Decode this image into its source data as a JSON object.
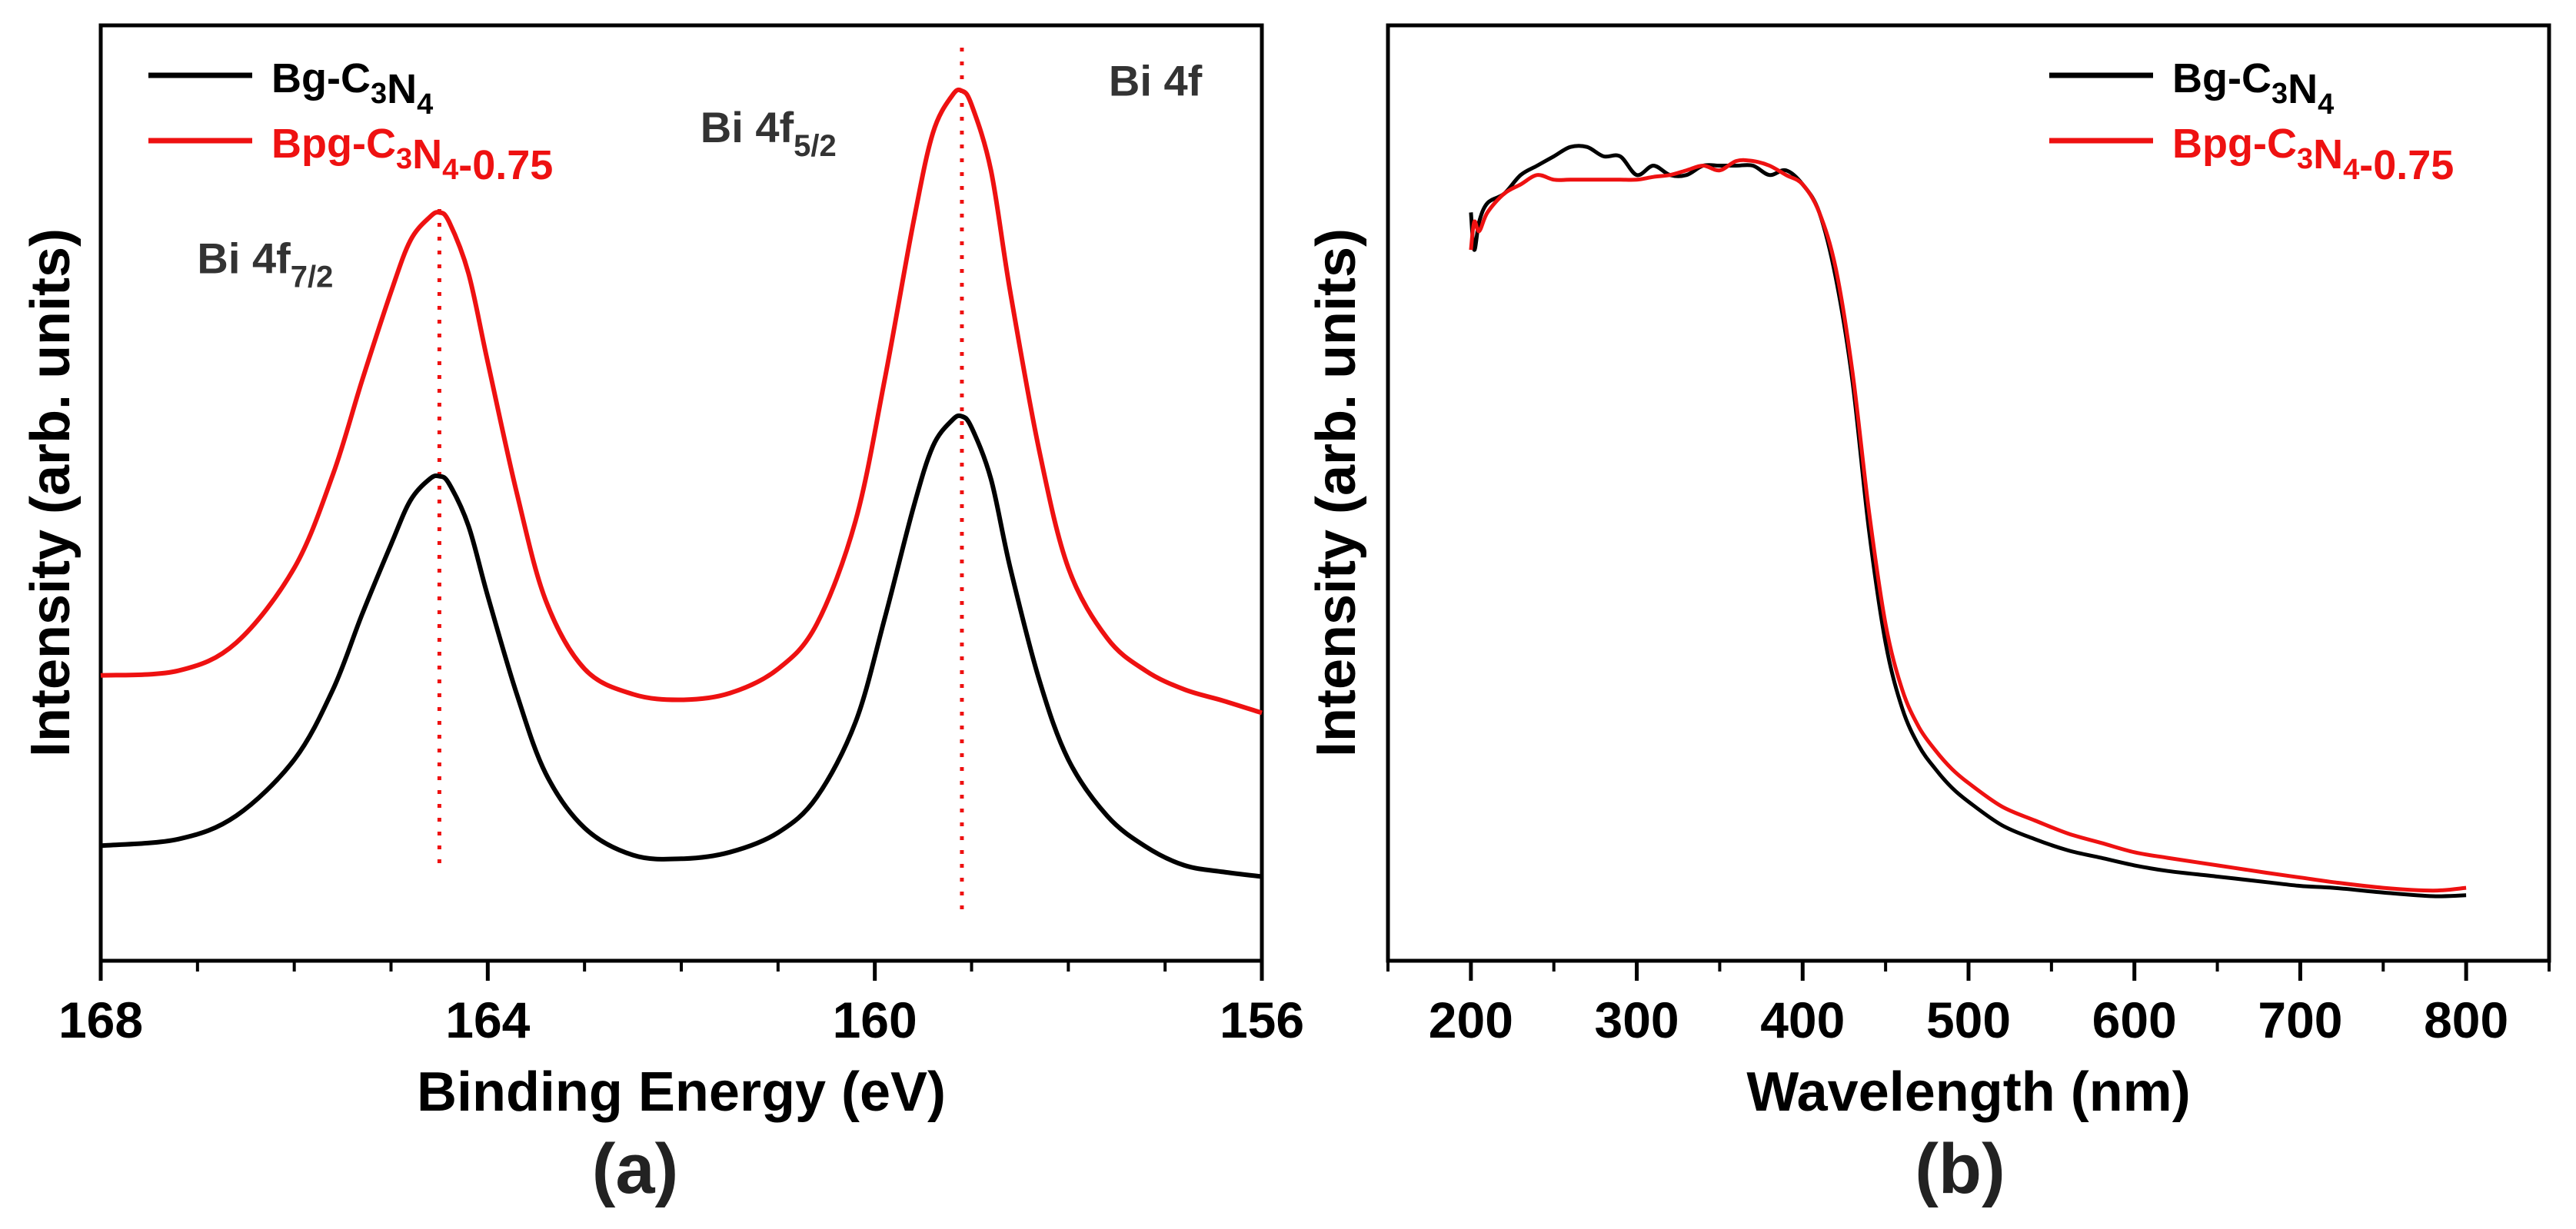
{
  "colors": {
    "black_series": "#000000",
    "red_series": "#ee1111",
    "peak_marker": "#ee1111",
    "axis": "#000000",
    "label_gray": "#333333"
  },
  "chart_data": [
    {
      "type": "line",
      "panel_label": "(a)",
      "xlabel": "Binding Energy (eV)",
      "ylabel": "Intensity (arb. units)",
      "xlim": [
        168,
        156
      ],
      "x_reversed": true,
      "x_major_ticks": [
        168,
        164,
        160,
        156
      ],
      "x_tick_labels": [
        "168",
        "164",
        "160",
        "156"
      ],
      "x_minor_ticks": [
        167,
        166,
        165,
        163,
        162,
        161,
        159,
        158,
        157
      ],
      "ylim": [
        0,
        100
      ],
      "y_ticks_shown": false,
      "grid": false,
      "legend_position": "top-left",
      "series": [
        {
          "name": "Bg-C₃N₄",
          "name_parts": {
            "base": "Bg-C",
            "sub1": "3",
            "mid": "N",
            "sub2": "4",
            "tail": ""
          },
          "color": "#000000",
          "x": [
            168,
            167.2,
            166.6,
            166.0,
            165.6,
            165.3,
            165.0,
            164.8,
            164.6,
            164.5,
            164.4,
            164.2,
            164.0,
            163.7,
            163.4,
            163.0,
            162.5,
            162.0,
            161.5,
            161.0,
            160.6,
            160.2,
            159.9,
            159.6,
            159.4,
            159.2,
            159.1,
            159.0,
            158.8,
            158.6,
            158.3,
            158.0,
            157.6,
            157.2,
            156.8,
            156.4,
            156.0
          ],
          "values": [
            12.3,
            13.0,
            15.5,
            21.5,
            29.0,
            37.0,
            44.5,
            49.2,
            51.5,
            51.8,
            51.0,
            46.5,
            39.0,
            28.5,
            20.0,
            14.2,
            11.3,
            10.9,
            11.6,
            13.7,
            17.5,
            25.5,
            36.5,
            48.5,
            55.0,
            57.8,
            58.2,
            57.0,
            51.5,
            42.0,
            30.0,
            21.5,
            15.5,
            12.2,
            10.2,
            9.5,
            9.0
          ]
        },
        {
          "name": "Bpg-C₃N₄-0.75",
          "name_parts": {
            "base": "Bpg-C",
            "sub1": "3",
            "mid": "N",
            "sub2": "4",
            "tail": "-0.75"
          },
          "color": "#ee1111",
          "x": [
            168,
            167.2,
            166.6,
            166.0,
            165.6,
            165.3,
            165.0,
            164.8,
            164.6,
            164.5,
            164.4,
            164.2,
            164.0,
            163.7,
            163.4,
            163.0,
            162.5,
            162.0,
            161.5,
            161.0,
            160.6,
            160.2,
            159.9,
            159.6,
            159.4,
            159.2,
            159.1,
            159.0,
            158.8,
            158.6,
            158.3,
            158.0,
            157.6,
            157.2,
            156.8,
            156.4,
            156.0
          ],
          "values": [
            30.5,
            31.0,
            34.0,
            42.0,
            52.0,
            62.0,
            71.5,
            77.0,
            79.5,
            80.0,
            79.0,
            73.5,
            64.0,
            50.0,
            38.5,
            31.2,
            28.5,
            27.9,
            28.6,
            31.2,
            36.0,
            47.0,
            62.0,
            79.0,
            88.5,
            92.5,
            93.0,
            91.5,
            84.5,
            71.5,
            54.5,
            42.0,
            34.5,
            31.0,
            29.0,
            27.8,
            26.5
          ]
        }
      ],
      "peak_markers": [
        164.5,
        159.1
      ],
      "annotations": [
        {
          "text_base": "Bi 4f",
          "text_sub": "7/2",
          "x": 166.3,
          "y": 73.5
        },
        {
          "text_base": "Bi 4f",
          "text_sub": "5/2",
          "x": 161.1,
          "y": 87.5
        },
        {
          "text_base": "Bi 4f",
          "text_sub": "",
          "x": 157.1,
          "y": 92.5
        }
      ]
    },
    {
      "type": "line",
      "panel_label": "(b)",
      "xlabel": "Wavelength (nm)",
      "ylabel": "Intensity (arb. units)",
      "xlim": [
        150,
        850
      ],
      "x_major_ticks": [
        200,
        300,
        400,
        500,
        600,
        700,
        800
      ],
      "x_tick_labels": [
        "200",
        "300",
        "400",
        "500",
        "600",
        "700",
        "800"
      ],
      "x_minor_ticks": [
        150,
        250,
        350,
        450,
        550,
        650,
        750,
        850
      ],
      "ylim": [
        0,
        100
      ],
      "y_ticks_shown": false,
      "grid": false,
      "legend_position": "top-right",
      "series": [
        {
          "name": "Bg-C₃N₄",
          "name_parts": {
            "base": "Bg-C",
            "sub1": "3",
            "mid": "N",
            "sub2": "4",
            "tail": ""
          },
          "color": "#000000",
          "x": [
            200,
            202,
            205,
            210,
            220,
            230,
            240,
            250,
            260,
            270,
            280,
            290,
            300,
            310,
            320,
            330,
            340,
            350,
            360,
            370,
            380,
            390,
            400,
            410,
            420,
            430,
            440,
            450,
            460,
            470,
            480,
            490,
            500,
            520,
            540,
            560,
            580,
            600,
            620,
            650,
            680,
            700,
            720,
            750,
            780,
            800
          ],
          "values": [
            80,
            76,
            79,
            81,
            82,
            84,
            85,
            86,
            87,
            87,
            86,
            86,
            84,
            85,
            84,
            84,
            85,
            85,
            85,
            85,
            84,
            84.5,
            83,
            80,
            73,
            62,
            46,
            34,
            27,
            23,
            20.5,
            18.5,
            17,
            14.5,
            13,
            11.8,
            11,
            10.2,
            9.6,
            9,
            8.4,
            8,
            7.8,
            7.3,
            6.9,
            7.0
          ]
        },
        {
          "name": "Bpg-C₃N₄-0.75",
          "name_parts": {
            "base": "Bpg-C",
            "sub1": "3",
            "mid": "N",
            "sub2": "4",
            "tail": "-0.75"
          },
          "color": "#ee1111",
          "x": [
            200,
            202,
            205,
            210,
            220,
            230,
            240,
            250,
            260,
            270,
            280,
            290,
            300,
            310,
            320,
            330,
            340,
            350,
            360,
            370,
            380,
            390,
            400,
            410,
            420,
            430,
            440,
            450,
            460,
            470,
            480,
            490,
            500,
            520,
            540,
            560,
            580,
            600,
            620,
            650,
            680,
            700,
            720,
            750,
            780,
            800
          ],
          "values": [
            76,
            79,
            78,
            80,
            82,
            83,
            84,
            83.5,
            83.5,
            83.5,
            83.5,
            83.5,
            83.5,
            83.8,
            84,
            84.5,
            85,
            84.5,
            85.5,
            85.5,
            85,
            84,
            83,
            80,
            74,
            63,
            48,
            36,
            29,
            25,
            22.5,
            20.5,
            19,
            16.5,
            15,
            13.6,
            12.6,
            11.6,
            11,
            10.2,
            9.4,
            8.9,
            8.4,
            7.8,
            7.5,
            7.8
          ]
        }
      ],
      "peak_markers": [],
      "annotations": []
    }
  ]
}
